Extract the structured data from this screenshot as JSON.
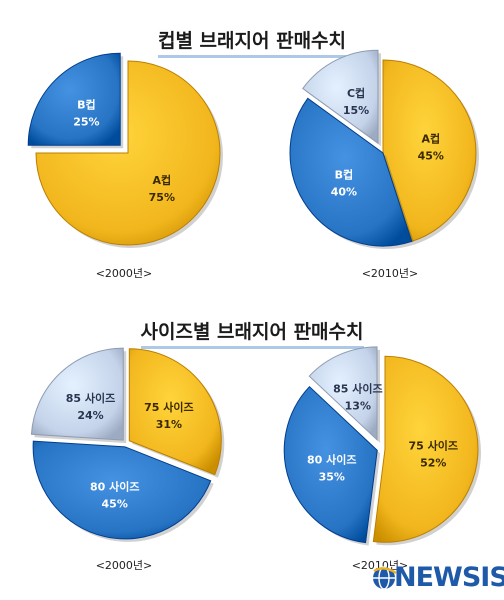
{
  "titles": {
    "top": "컵별 브래지어 판매수치",
    "bottom": "사이즈별 브래지어 판매수치"
  },
  "colors": {
    "gold": "#f2b61d",
    "blue": "#2874c4",
    "light": "#c5d3ea"
  },
  "logo": {
    "text": "NEWSIS",
    "icon": "globe-icon"
  },
  "chart_data": [
    {
      "type": "pie",
      "title": "컵별 브래지어 판매수치",
      "caption": "<2000년>",
      "slices": [
        {
          "name": "A컵",
          "value": 75,
          "pct": "75%",
          "color": "gold"
        },
        {
          "name": "B컵",
          "value": 25,
          "pct": "25%",
          "color": "blue"
        }
      ]
    },
    {
      "type": "pie",
      "title": "컵별 브래지어 판매수치",
      "caption": "<2010년>",
      "slices": [
        {
          "name": "A컵",
          "value": 45,
          "pct": "45%",
          "color": "gold"
        },
        {
          "name": "B컵",
          "value": 40,
          "pct": "40%",
          "color": "blue"
        },
        {
          "name": "C컵",
          "value": 15,
          "pct": "15%",
          "color": "light"
        }
      ]
    },
    {
      "type": "pie",
      "title": "사이즈별 브래지어 판매수치",
      "caption": "<2000년>",
      "slices": [
        {
          "name": "75 사이즈",
          "value": 31,
          "pct": "31%",
          "color": "gold"
        },
        {
          "name": "80 사이즈",
          "value": 45,
          "pct": "45%",
          "color": "blue"
        },
        {
          "name": "85 사이즈",
          "value": 24,
          "pct": "24%",
          "color": "light"
        }
      ]
    },
    {
      "type": "pie",
      "title": "사이즈별 브래지어 판매수치",
      "caption": "<2010년>",
      "slices": [
        {
          "name": "75 사이즈",
          "value": 52,
          "pct": "52%",
          "color": "gold"
        },
        {
          "name": "80 사이즈",
          "value": 35,
          "pct": "35%",
          "color": "blue"
        },
        {
          "name": "85 사이즈",
          "value": 13,
          "pct": "13%",
          "color": "light"
        }
      ]
    }
  ]
}
